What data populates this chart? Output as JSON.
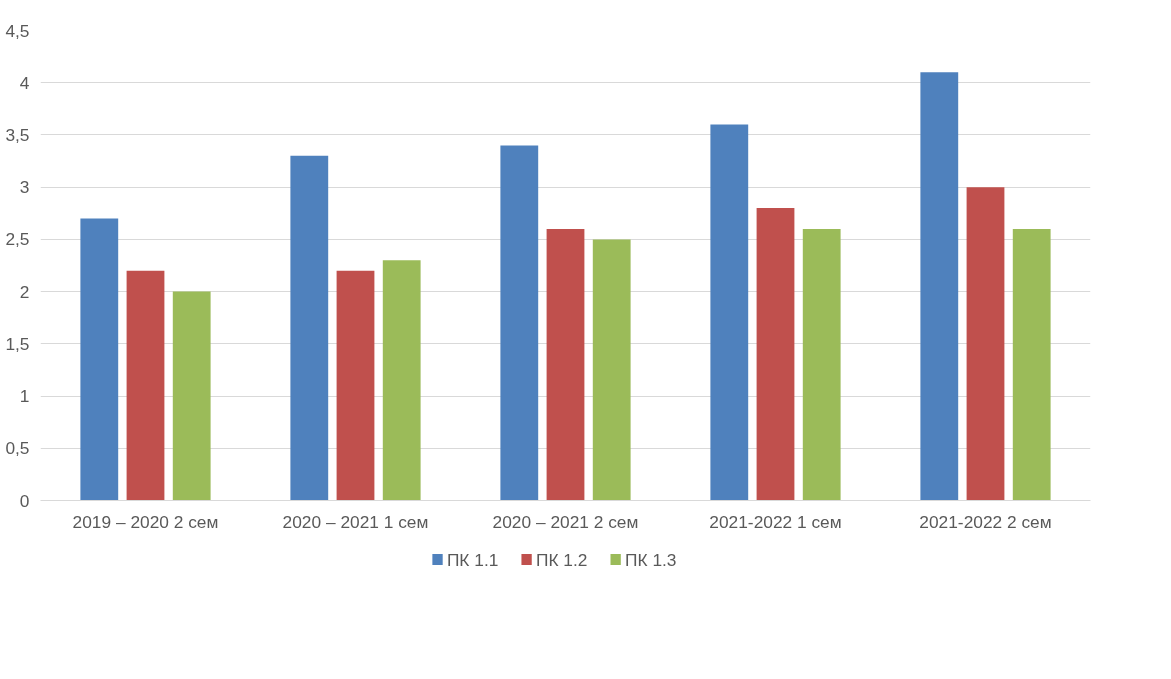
{
  "chart_data": {
    "type": "bar",
    "categories": [
      "2019 – 2020 2 сем",
      "2020 – 2021 1 сем",
      "2020 – 2021 2 сем",
      "2021-2022 1 сем",
      "2021-2022 2 сем"
    ],
    "series": [
      {
        "name": "ПК 1.1",
        "color": "#4f81bd",
        "values": [
          2.7,
          3.3,
          3.4,
          3.6,
          4.1
        ]
      },
      {
        "name": "ПК 1.2",
        "color": "#c0504d",
        "values": [
          2.2,
          2.2,
          2.6,
          2.8,
          3.0
        ]
      },
      {
        "name": "ПК 1.3",
        "color": "#9bbb59",
        "values": [
          2.0,
          2.3,
          2.5,
          2.6,
          2.6
        ]
      }
    ],
    "ylim": [
      0,
      4.5
    ],
    "yticks": [
      {
        "value": 0,
        "label": "0"
      },
      {
        "value": 0.5,
        "label": "0,5"
      },
      {
        "value": 1,
        "label": "1"
      },
      {
        "value": 1.5,
        "label": "1,5"
      },
      {
        "value": 2,
        "label": "2"
      },
      {
        "value": 2.5,
        "label": "2,5"
      },
      {
        "value": 3,
        "label": "3"
      },
      {
        "value": 3.5,
        "label": "3,5"
      },
      {
        "value": 4,
        "label": "4"
      },
      {
        "value": 4.5,
        "label": "4,5"
      }
    ],
    "grid": "y",
    "legend": "bottom"
  }
}
